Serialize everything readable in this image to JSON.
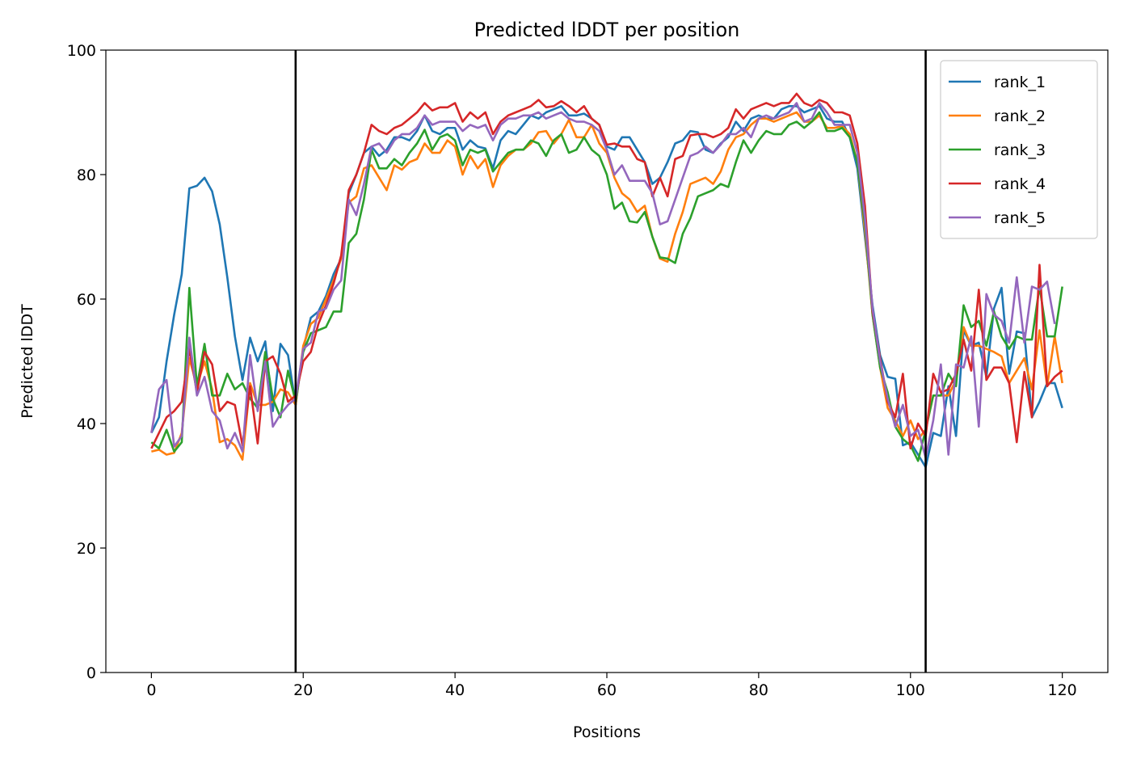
{
  "chart_data": {
    "type": "line",
    "title": "Predicted lDDT per position",
    "xlabel": "Positions",
    "ylabel": "Predicted lDDT",
    "xlim": [
      -6,
      126
    ],
    "ylim": [
      0,
      100
    ],
    "xticks": [
      0,
      20,
      40,
      60,
      80,
      100,
      120
    ],
    "yticks": [
      0,
      20,
      40,
      60,
      80,
      100
    ],
    "vlines": [
      19,
      102
    ],
    "grid": false,
    "legend_position": "top-right",
    "series": [
      {
        "name": "rank_1",
        "color": "#1f77b4",
        "values": [
          38.5,
          41,
          50,
          57.5,
          64,
          77.8,
          78.2,
          79.5,
          77.3,
          72,
          63.5,
          54,
          47,
          53.8,
          50,
          53.2,
          42,
          52.8,
          51,
          43,
          52,
          57,
          58,
          60.5,
          64,
          66.5,
          77,
          80,
          83.5,
          84.5,
          83,
          84,
          86,
          86,
          85.5,
          87,
          89.5,
          87,
          86.5,
          87.5,
          87.5,
          84,
          85.5,
          84.5,
          84.2,
          81,
          85.5,
          87,
          86.5,
          88,
          89.5,
          89,
          90,
          90.5,
          91,
          89.5,
          89.5,
          89.8,
          89,
          88,
          84.5,
          84,
          86,
          86,
          84,
          82,
          78.5,
          79.5,
          82,
          85,
          85.5,
          87,
          86.8,
          84,
          83.5,
          85,
          86,
          88.5,
          87,
          89,
          89.5,
          89,
          89,
          90.5,
          91,
          91,
          90,
          90.5,
          91,
          89,
          88.5,
          88.5,
          86,
          81,
          70,
          59,
          51,
          47.5,
          47.2,
          36.5,
          37,
          35,
          33,
          38.5,
          38,
          46,
          38,
          55,
          52.5,
          53,
          47.5,
          58.5,
          61.8,
          48,
          54.8,
          54.5,
          41,
          43.5,
          46.5,
          46.5,
          42.5
        ]
      },
      {
        "name": "rank_2",
        "color": "#ff7f0e",
        "values": [
          35.5,
          35.8,
          35,
          35.3,
          38.5,
          50.5,
          46,
          50,
          45.5,
          37,
          37.5,
          36.5,
          34.2,
          46.5,
          43,
          43,
          43.5,
          45.5,
          45,
          43,
          52.5,
          56,
          57,
          60,
          63,
          66.5,
          75.5,
          76.5,
          81,
          81.5,
          79.5,
          77.5,
          81.5,
          80.8,
          82,
          82.5,
          85,
          83.5,
          83.5,
          85.5,
          84.5,
          80,
          83,
          81,
          82.5,
          78,
          81.5,
          83,
          84,
          84,
          85,
          86.8,
          87,
          85,
          86.5,
          88.8,
          86,
          86,
          88,
          85,
          83.5,
          79.5,
          77,
          76,
          74,
          75,
          70,
          66.5,
          66,
          70.5,
          74,
          78.5,
          79,
          79.5,
          78.5,
          80.5,
          84,
          86,
          86.5,
          88,
          89,
          89,
          88.5,
          89,
          89.5,
          90,
          88.5,
          88.5,
          89.5,
          87.5,
          87.5,
          87.8,
          86.5,
          82,
          71,
          57.5,
          49,
          42.5,
          40.5,
          38,
          40.5,
          37.5,
          39,
          44.5,
          44.5,
          44.5,
          47,
          55.5,
          52.5,
          52.5,
          52,
          51.5,
          50.8,
          46.5,
          48.5,
          50.5,
          45.5,
          55,
          46,
          54,
          46.5
        ]
      },
      {
        "name": "rank_3",
        "color": "#2ca02c",
        "values": [
          37,
          36,
          39,
          35.5,
          37,
          61.8,
          46,
          52.8,
          44.5,
          44.5,
          48,
          45.5,
          46.5,
          44,
          42.5,
          51.5,
          44,
          41,
          48.5,
          43.5,
          51.5,
          54.5,
          55,
          55.5,
          58,
          58,
          69,
          70.5,
          76,
          84,
          81,
          81,
          82.5,
          81.5,
          83.5,
          85,
          87.2,
          84,
          86,
          86.5,
          85.5,
          81.5,
          84,
          83.5,
          84,
          80.5,
          82,
          83.5,
          84,
          84,
          85.5,
          85,
          83,
          85.5,
          86.5,
          83.5,
          84,
          86,
          84,
          83,
          80,
          74.5,
          75.5,
          72.5,
          72.3,
          74,
          70,
          66.7,
          66.5,
          65.8,
          70.5,
          73,
          76.5,
          77,
          77.5,
          78.5,
          78,
          82,
          85.5,
          83.5,
          85.5,
          87,
          86.5,
          86.5,
          88,
          88.5,
          87.5,
          88.5,
          90,
          87,
          87,
          87.5,
          86,
          82,
          72,
          57.5,
          49,
          45,
          39.5,
          37.5,
          36.5,
          34,
          39,
          44.5,
          44.5,
          48,
          46,
          59,
          55.5,
          56.5,
          52.5,
          58,
          54,
          52,
          54,
          53.5,
          53.5,
          62,
          54,
          54,
          62
        ]
      },
      {
        "name": "rank_4",
        "color": "#d62728",
        "values": [
          36,
          38.5,
          41,
          42,
          43.5,
          52,
          45,
          51.5,
          49.5,
          42,
          43.5,
          43,
          36.5,
          46,
          36.8,
          50,
          50.8,
          48,
          43.5,
          44.5,
          50,
          51.5,
          56,
          59,
          62.5,
          67,
          77.5,
          80,
          83.5,
          88,
          87,
          86.5,
          87.5,
          88,
          89,
          90,
          91.5,
          90.3,
          90.8,
          90.8,
          91.5,
          88.5,
          90,
          89,
          90,
          86.5,
          88.5,
          89.5,
          90,
          90.5,
          91,
          92,
          90.8,
          91,
          91.8,
          91,
          90,
          91,
          89,
          88,
          84.8,
          85,
          84.5,
          84.5,
          82.5,
          82,
          76.5,
          79.5,
          76.5,
          82.5,
          83,
          86.3,
          86.5,
          86.5,
          86,
          86.5,
          87.5,
          90.5,
          89,
          90.5,
          91,
          91.5,
          91,
          91.5,
          91.5,
          93,
          91.5,
          91,
          92,
          91.5,
          90,
          90,
          89.5,
          85,
          75,
          58,
          50.5,
          43.5,
          41,
          48,
          36,
          40,
          38,
          48,
          45,
          45.5,
          48,
          53.5,
          48.5,
          61.5,
          47,
          49,
          49,
          46.5,
          37,
          48.3,
          41,
          65.5,
          46,
          47.5,
          48.5
        ]
      },
      {
        "name": "rank_5",
        "color": "#9467bd",
        "values": [
          38.5,
          45.5,
          47,
          36.3,
          38,
          53.8,
          44.5,
          47.5,
          42,
          40.5,
          36,
          38.5,
          35.5,
          51,
          42,
          50,
          39.5,
          41.5,
          43,
          44,
          52,
          53,
          58,
          58.5,
          61.5,
          63,
          76,
          73.5,
          78.5,
          84.5,
          85,
          83.5,
          85.5,
          86.5,
          86.5,
          87.5,
          89.5,
          88,
          88.5,
          88.5,
          88.5,
          87,
          88,
          87.5,
          88,
          85.5,
          88,
          89,
          89,
          89.5,
          89.5,
          90,
          89,
          89.5,
          90,
          89,
          88.5,
          88.5,
          88,
          87,
          84,
          80,
          81.5,
          79,
          79,
          79,
          77,
          72,
          72.5,
          76,
          79.5,
          83,
          83.5,
          84.5,
          83.5,
          84.8,
          86.5,
          86.5,
          87.5,
          86,
          89,
          89.5,
          89,
          89.5,
          90,
          91.5,
          88.5,
          89,
          91.5,
          90,
          88,
          88,
          88,
          83.5,
          73,
          58.5,
          50,
          44,
          39.5,
          43,
          38,
          39,
          34.5,
          40.5,
          49.5,
          35,
          49.5,
          49,
          54,
          39.5,
          60.8,
          57.5,
          56.5,
          53,
          63.5,
          53,
          62,
          61.5,
          62.8,
          56
        ]
      }
    ]
  }
}
